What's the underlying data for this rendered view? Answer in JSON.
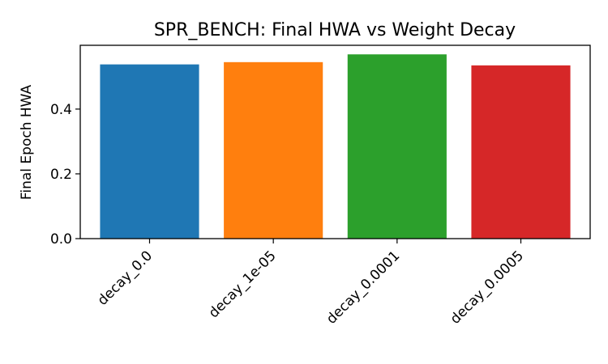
{
  "chart_data": {
    "type": "bar",
    "title": "SPR_BENCH: Final HWA vs Weight Decay",
    "xlabel": "",
    "ylabel": "Final Epoch HWA",
    "categories": [
      "decay_0.0",
      "decay_1e-05",
      "decay_0.0001",
      "decay_0.0005"
    ],
    "values": [
      0.538,
      0.545,
      0.569,
      0.535
    ],
    "colors": [
      "#1f77b4",
      "#ff7f0e",
      "#2ca02c",
      "#d62728"
    ],
    "ylim": [
      0,
      0.597
    ],
    "yticks": [
      0.0,
      0.2,
      0.4
    ],
    "ytick_labels": [
      "0.0",
      "0.2",
      "0.4"
    ],
    "grid": false,
    "legend": "none"
  }
}
